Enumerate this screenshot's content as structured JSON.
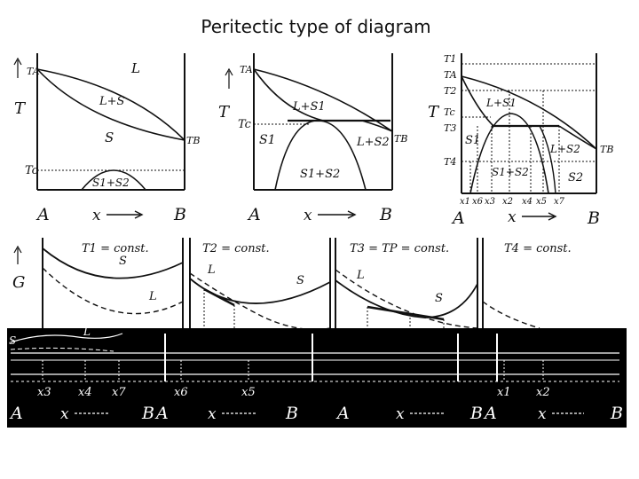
{
  "title": "Peritectic type of diagram",
  "colors": {
    "ink": "#111111",
    "paper": "#ffffff",
    "negative_band": "#000000"
  },
  "panels": [
    {
      "id": "phase-diagram-1",
      "labels": {
        "y_axis": "T",
        "t_left": "TA",
        "t_right": "TB",
        "t_c": "Tc",
        "x_left": "A",
        "x_axis": "x",
        "x_right": "B",
        "region_liquid": "L",
        "region_two_phase": "L+S",
        "region_solid": "S",
        "region_miscibility": "S1+S2"
      }
    },
    {
      "id": "phase-diagram-2",
      "labels": {
        "y_axis": "T",
        "t_left": "TA",
        "t_right": "TB",
        "t_c": "Tc",
        "x_left": "A",
        "x_axis": "x",
        "x_right": "B",
        "region_l_s1": "L+S1",
        "region_l_s2": "L+S2",
        "region_s1": "S1",
        "region_s1_s2": "S1+S2"
      }
    },
    {
      "id": "phase-diagram-3",
      "labels": {
        "y_axis": "T",
        "t1": "T1",
        "t_left": "TA",
        "t2": "T2",
        "t_c": "Tc",
        "t3": "T3",
        "t4": "T4",
        "t_right": "TB",
        "x_left": "A",
        "x_axis": "x",
        "x_right": "B",
        "region_l_s1": "L+S1",
        "region_l_s2": "L+S2",
        "region_s1": "S1",
        "region_s1_s2": "S1+S2",
        "region_s2": "S2",
        "compositions": [
          "x1",
          "x6",
          "x3",
          "x2",
          "x4",
          "x5",
          "x7"
        ]
      }
    }
  ],
  "energy_panels": [
    {
      "id": "g-panel-1",
      "label": "T1 = const.",
      "y_axis": "G",
      "curve_s": "S",
      "curve_l": "L"
    },
    {
      "id": "g-panel-2",
      "label": "T2 = const.",
      "curve_s": "S",
      "curve_l": "L"
    },
    {
      "id": "g-panel-3",
      "label": "T3 = TP = const.",
      "curve_s": "S",
      "curve_l": "L"
    },
    {
      "id": "g-panel-4",
      "label": "T4 = const."
    }
  ],
  "bottom_strip": {
    "curve_labels": [
      "S",
      "L"
    ],
    "compositions": [
      "x3",
      "x4",
      "x7",
      "x6",
      "x5",
      "x1",
      "x2"
    ],
    "axis_labels": [
      "A",
      "x",
      "B",
      "A",
      "x",
      "B",
      "A",
      "x",
      "B",
      "A",
      "x",
      "B"
    ]
  }
}
